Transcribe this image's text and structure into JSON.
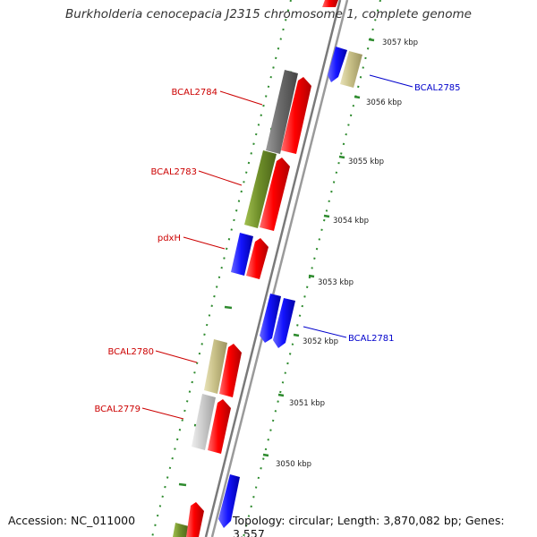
{
  "title": "Burkholderia cenocepacia J2315 chromosome 1, complete genome",
  "accession": "Accession: NC_011000",
  "topology": "Topology: circular; Length: 3,870,082 bp; Genes: 3,557",
  "colors": {
    "backbone": "#808080",
    "tick": "#2e8b2e",
    "label_red": "#cc0000",
    "label_blue": "#0000cc",
    "red": "#ff0000",
    "blue": "#1414ff",
    "dark_gray": "#6b6b6b",
    "olive": "#6f8f2a",
    "khaki": "#c8c087",
    "light_gray": "#c8c8c8"
  },
  "kbp_labels": [
    "3057 kbp",
    "3056 kbp",
    "3055 kbp",
    "3054 kbp",
    "3053 kbp",
    "3052 kbp",
    "3051 kbp",
    "3050 kbp"
  ],
  "gene_labels": [
    {
      "text": "BCAL2784",
      "color": "red"
    },
    {
      "text": "BCAL2783",
      "color": "red"
    },
    {
      "text": "pdxH",
      "color": "red"
    },
    {
      "text": "BCAL2780",
      "color": "red"
    },
    {
      "text": "BCAL2779",
      "color": "red"
    },
    {
      "text": "BCAL2785",
      "color": "blue"
    },
    {
      "text": "BCAL2781",
      "color": "blue"
    }
  ]
}
